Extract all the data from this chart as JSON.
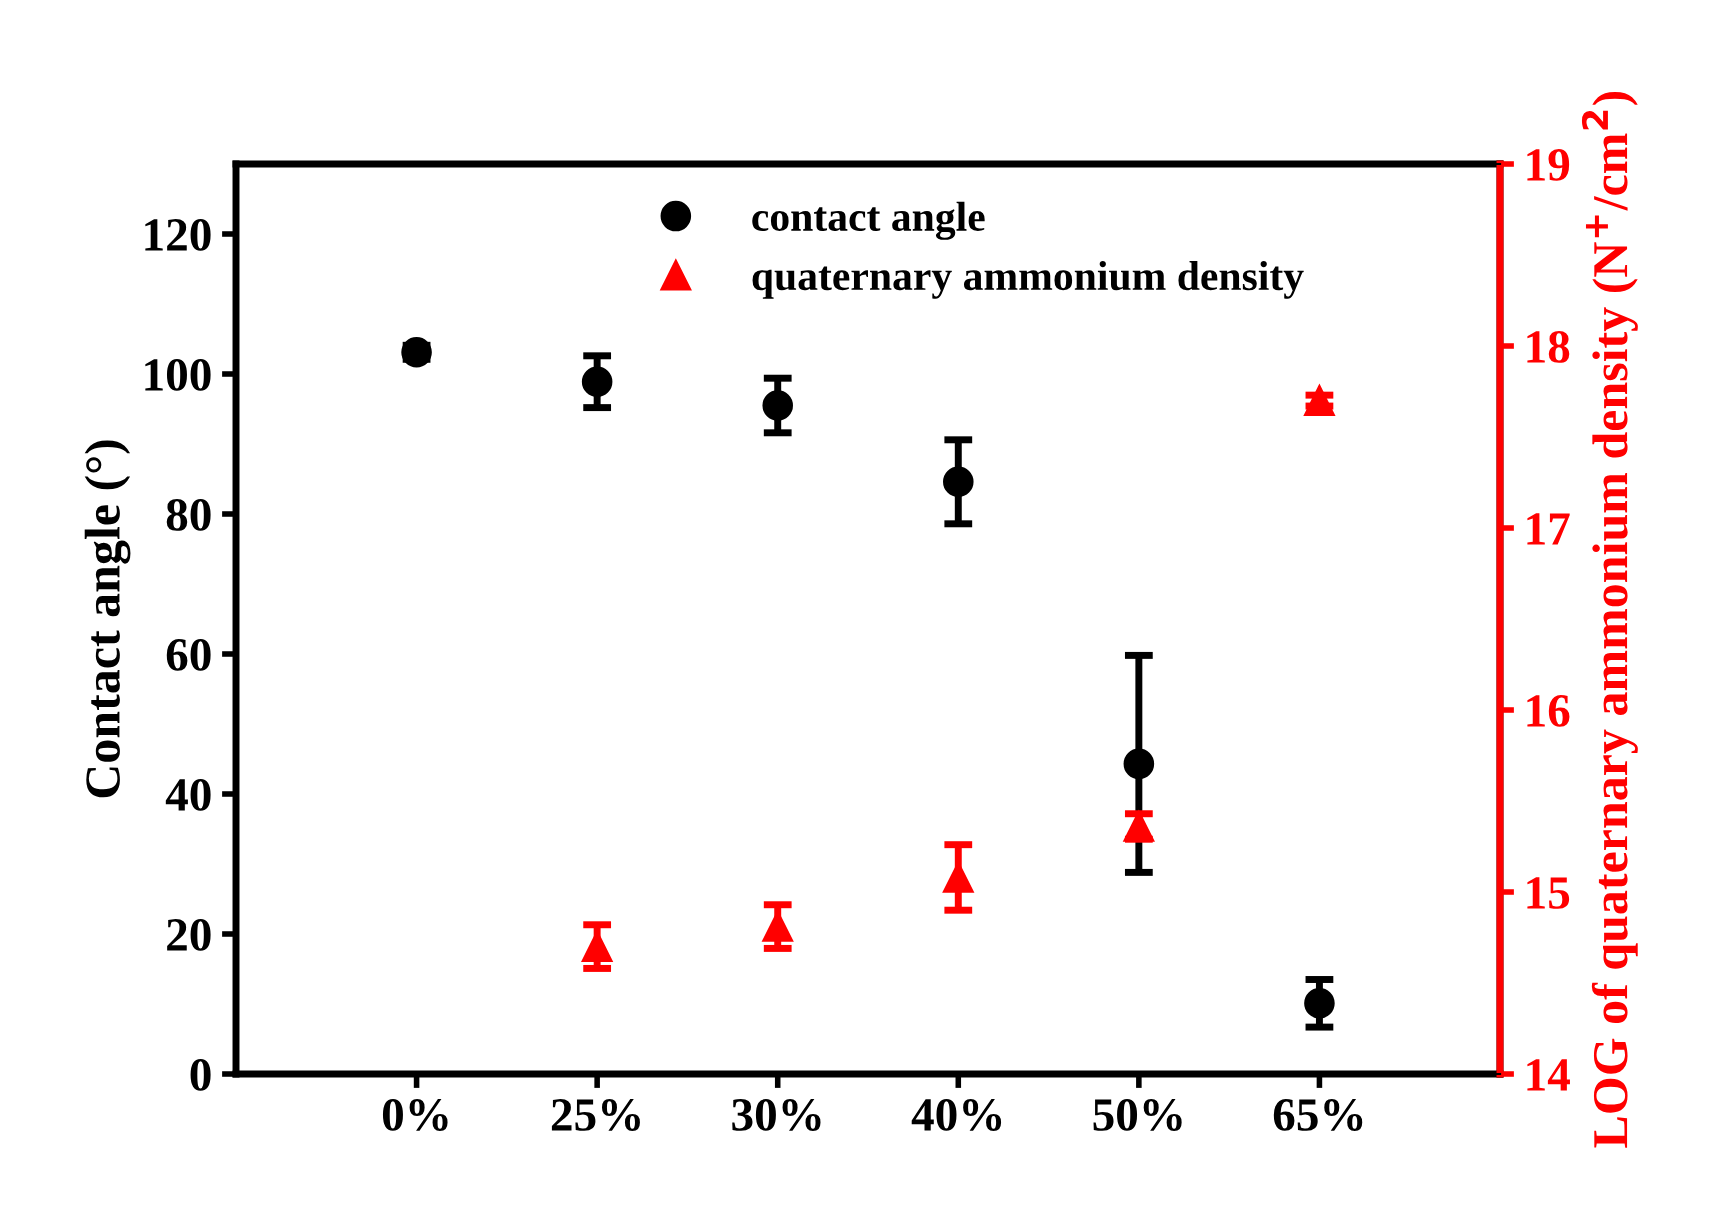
{
  "chart_data": {
    "type": "scatter",
    "ylabel": "Contact angle (°)",
    "y2label": "LOG of quaternary ammonium density (N$^{+}$/cm$^{2}$)",
    "categories": [
      "0%",
      "25%",
      "30%",
      "40%",
      "50%",
      "65%"
    ],
    "ylim": [
      0,
      130
    ],
    "yticks": [
      0,
      20,
      40,
      60,
      80,
      100,
      120
    ],
    "y2lim": [
      14,
      19
    ],
    "y2ticks": [
      14,
      15,
      16,
      17,
      18,
      19
    ],
    "grid": false,
    "legend": "top",
    "series": [
      {
        "name": "contact angle",
        "color": "#000000",
        "marker": "circle",
        "values": [
          103.1,
          98.9,
          95.5,
          84.6,
          44.3,
          10.1
        ],
        "errors": [
          1,
          3.7,
          3.9,
          6,
          15.5,
          3.4
        ]
      },
      {
        "name": "quaternary ammonium density",
        "color": "#ff0000",
        "marker": "triangle",
        "axis": "y2",
        "values": [
          null,
          14.7,
          14.81,
          15.08,
          15.36,
          17.7
        ],
        "errors": [
          null,
          0.12,
          0.12,
          0.18,
          0.07,
          0.03
        ]
      }
    ]
  }
}
